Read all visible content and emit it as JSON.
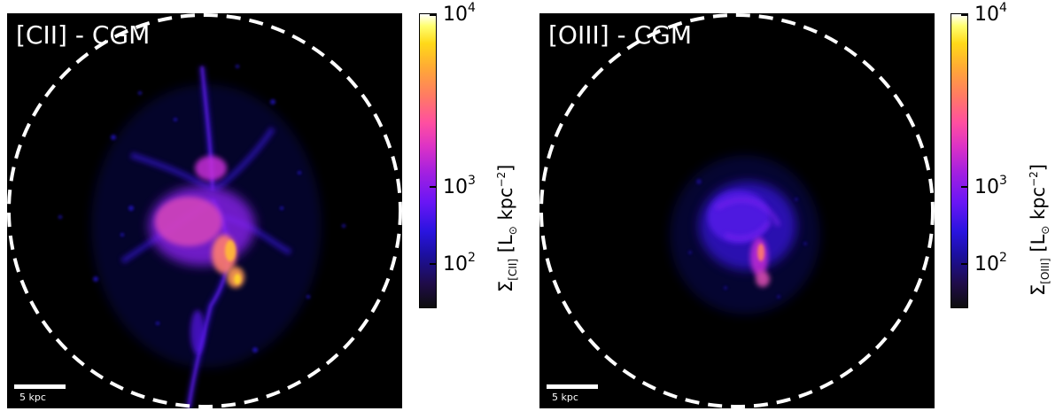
{
  "panels": [
    {
      "title": "[CII] - CGM",
      "scale_bar_label": "5 kpc",
      "colorbar": {
        "label_symbol": "Σ",
        "label_subscript": "[CII]",
        "label_units_prefix": "[L",
        "label_units_sun": "⊙",
        "label_units_mid": " kpc",
        "label_units_exp": "−2",
        "label_units_close": "]",
        "ticks": [
          {
            "base": "10",
            "exp": "4"
          },
          {
            "base": "10",
            "exp": "3"
          },
          {
            "base": "10",
            "exp": "2"
          }
        ]
      }
    },
    {
      "title": "[OIII] - CGM",
      "scale_bar_label": "5 kpc",
      "colorbar": {
        "label_symbol": "Σ",
        "label_subscript": "[OIII]",
        "label_units_prefix": "[L",
        "label_units_sun": "⊙",
        "label_units_mid": " kpc",
        "label_units_exp": "−2",
        "label_units_close": "]",
        "ticks": [
          {
            "base": "10",
            "exp": "4"
          },
          {
            "base": "10",
            "exp": "3"
          },
          {
            "base": "10",
            "exp": "2"
          }
        ]
      }
    }
  ],
  "colors": {
    "background": "#000000",
    "circle": "#ffffff",
    "colormap": "gnuplot2"
  }
}
